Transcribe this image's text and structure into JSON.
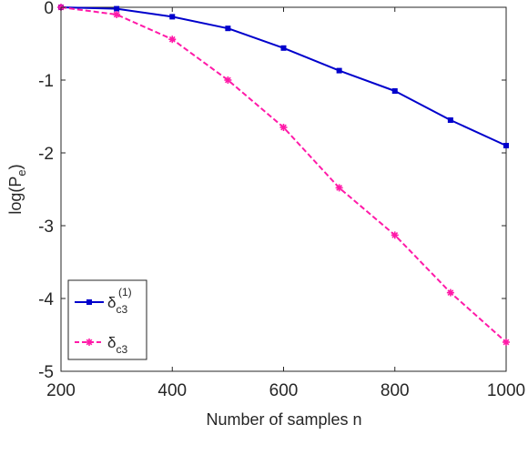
{
  "chart_data": {
    "type": "line",
    "title": "",
    "xlabel": "Number of samples n",
    "ylabel_parts": {
      "main": "log(P",
      "sub": "e",
      "close": ")"
    },
    "x": [
      200,
      300,
      400,
      500,
      600,
      700,
      800,
      900,
      1000
    ],
    "xlim": [
      200,
      1000
    ],
    "ylim": [
      -5,
      0
    ],
    "xticks": [
      200,
      400,
      600,
      800,
      1000
    ],
    "yticks": [
      0,
      -1,
      -2,
      -3,
      -4,
      -5
    ],
    "grid": false,
    "legend_placement": "bottom-left",
    "series": [
      {
        "legend": {
          "main": "δ",
          "sub": "c3",
          "sup": "(1)"
        },
        "color": "#0000cc",
        "line_style": "solid",
        "marker": "square",
        "values": [
          0,
          -0.02,
          -0.13,
          -0.29,
          -0.56,
          -0.87,
          -1.15,
          -1.55,
          -1.9
        ]
      },
      {
        "legend": {
          "main": "δ",
          "sub": "c3",
          "sup": ""
        },
        "color": "#ff1aa8",
        "line_style": "dashed",
        "marker": "asterisk",
        "values": [
          0,
          -0.1,
          -0.44,
          -1.0,
          -1.65,
          -2.48,
          -3.13,
          -3.92,
          -4.6
        ]
      }
    ]
  }
}
